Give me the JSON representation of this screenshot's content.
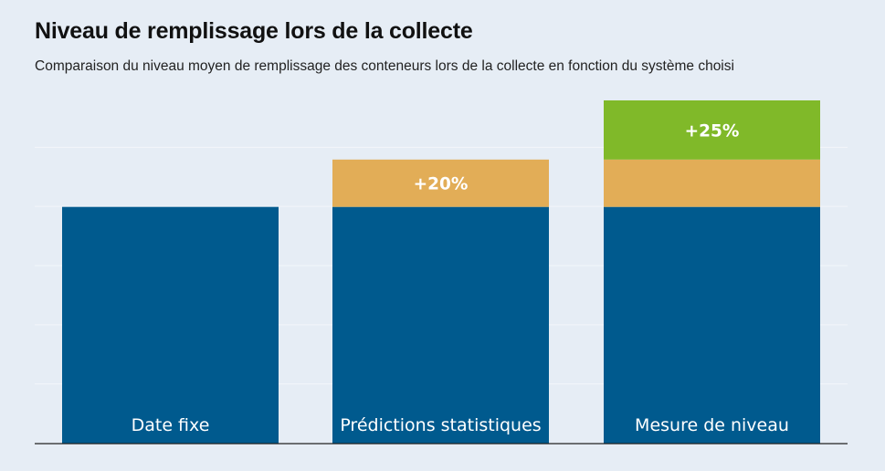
{
  "chart_data": {
    "type": "bar",
    "stacked": true,
    "title": "Niveau de remplissage lors de la collecte",
    "subtitle": "Comparaison du niveau moyen de remplissage des conteneurs lors de la collecte en fonction du système choisi",
    "categories": [
      "Date fixe",
      "Prédictions statistiques",
      "Mesure de niveau"
    ],
    "series": [
      {
        "values": [
          100,
          100,
          100
        ],
        "labels": [
          "",
          "",
          ""
        ],
        "color": "#005a8e"
      },
      {
        "values": [
          0,
          20,
          20
        ],
        "labels": [
          "",
          "+20%",
          ""
        ],
        "color": "#e2ad57"
      },
      {
        "values": [
          0,
          0,
          25
        ],
        "labels": [
          "",
          "",
          "+25%"
        ],
        "color": "#80b929"
      }
    ],
    "ylim": [
      0,
      150
    ],
    "grid": true
  }
}
